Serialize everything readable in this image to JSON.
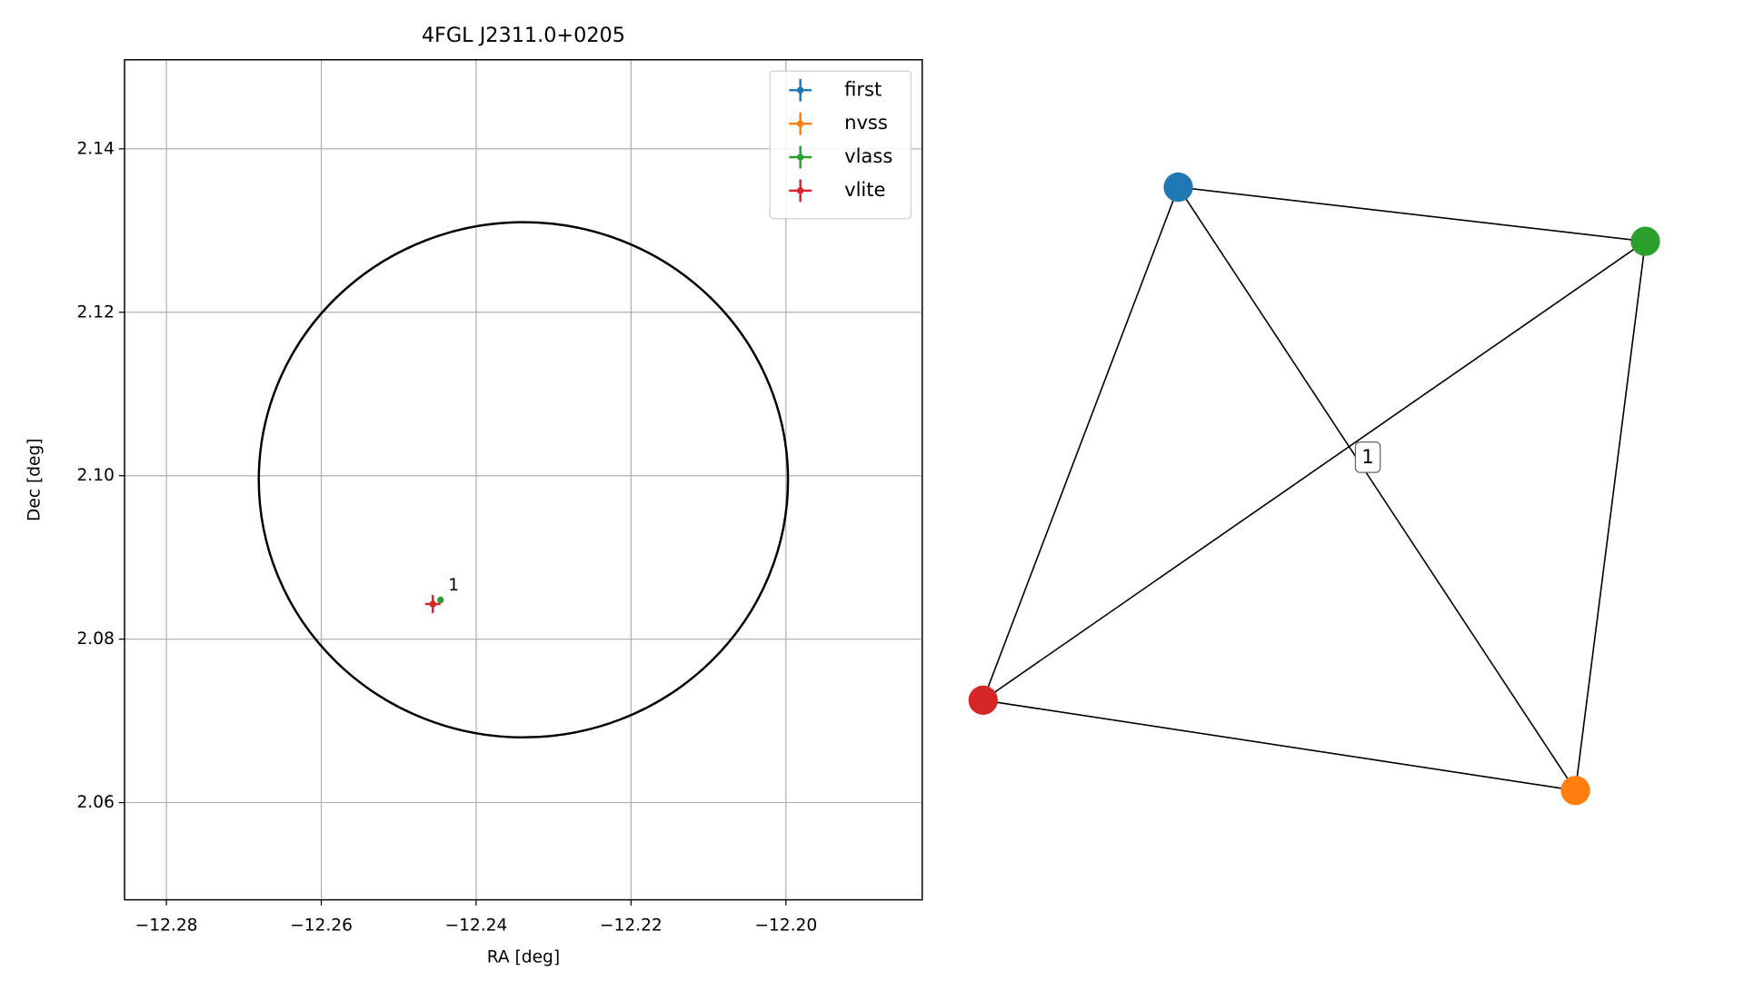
{
  "chart_data": [
    {
      "type": "scatter",
      "title": "4FGL J2311.0+0205",
      "xlabel": "RA [deg]",
      "ylabel": "Dec [deg]",
      "xlim": [
        -12.2854,
        -12.1824
      ],
      "ylim": [
        2.0481,
        2.1509
      ],
      "xticks": [
        {
          "value": -12.28,
          "label": "−12.28"
        },
        {
          "value": -12.26,
          "label": "−12.26"
        },
        {
          "value": -12.24,
          "label": "−12.24"
        },
        {
          "value": -12.22,
          "label": "−12.22"
        },
        {
          "value": -12.2,
          "label": "−12.20"
        }
      ],
      "yticks": [
        2.06,
        2.08,
        {
          "value": 2.1,
          "label": "2.10"
        },
        2.12,
        2.14
      ],
      "grid": true,
      "legend": "upper right",
      "circle": {
        "center_x": -12.2339,
        "center_y": 2.0995,
        "radius_x": 0.03417,
        "radius_y": 0.03152,
        "color": "#000000"
      },
      "series": [
        {
          "name": "first",
          "color": "#1f77b4",
          "x": [],
          "y": [],
          "xerr": [],
          "yerr": []
        },
        {
          "name": "nvss",
          "color": "#ff7f0e",
          "x": [],
          "y": [],
          "xerr": [],
          "yerr": []
        },
        {
          "name": "vlass",
          "color": "#2ca02c",
          "x": [
            -12.2446
          ],
          "y": [
            2.0848
          ],
          "xerr": [
            0.0002
          ],
          "yerr": [
            0.0002
          ]
        },
        {
          "name": "vlite",
          "color": "#d62728",
          "x": [
            -12.2456
          ],
          "y": [
            2.0843
          ],
          "xerr": [
            0.001
          ],
          "yerr": [
            0.0011
          ]
        }
      ],
      "annotations": [
        {
          "text": "1",
          "x": -12.2436,
          "y": 2.0866
        }
      ]
    },
    {
      "type": "network",
      "nodes": [
        {
          "color": "#1f77b4"
        },
        {
          "color": "#2ca02c"
        },
        {
          "color": "#d62728"
        },
        {
          "color": "#ff7f0e"
        }
      ],
      "edges": [
        [
          0,
          1
        ],
        [
          0,
          2
        ],
        [
          0,
          3
        ],
        [
          1,
          2
        ],
        [
          1,
          3
        ],
        [
          2,
          3
        ]
      ],
      "edge_label": "1"
    }
  ]
}
